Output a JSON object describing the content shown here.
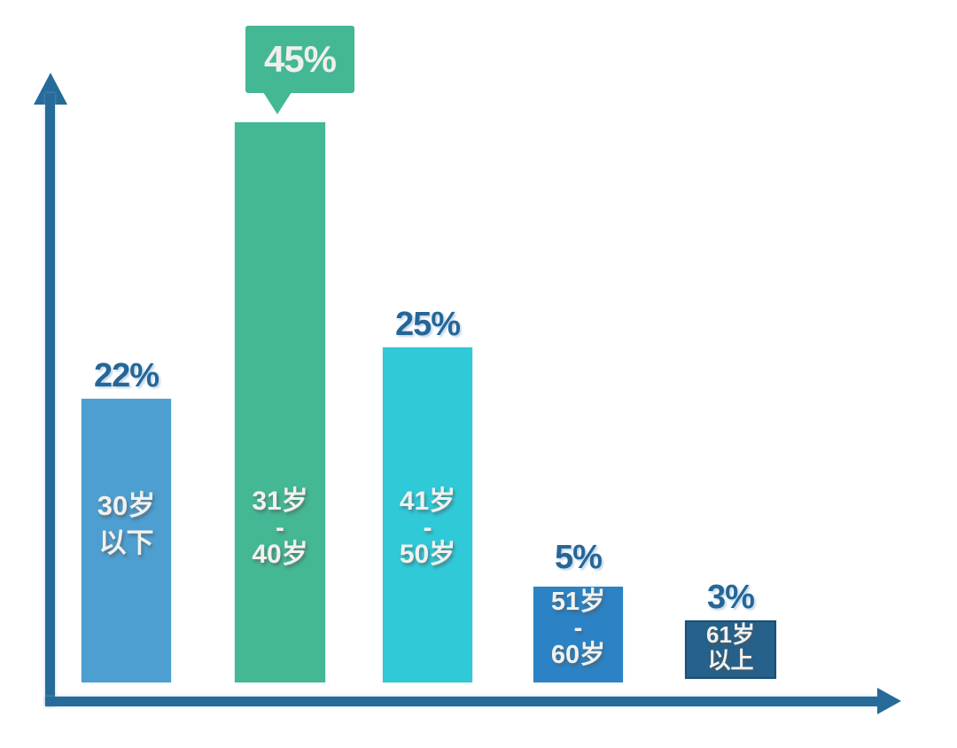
{
  "chart_data": {
    "type": "bar",
    "title": "",
    "xlabel": "",
    "ylabel": "",
    "grid": false,
    "legend": "none",
    "categories": [
      "30岁以下",
      "31岁-40岁",
      "41岁-50岁",
      "51岁-60岁",
      "61岁以上"
    ],
    "values": [
      22,
      45,
      25,
      5,
      3
    ],
    "unit": "%",
    "value_labels": [
      "22%",
      "45%",
      "25%",
      "5%",
      "3%"
    ],
    "bar_text_lines": [
      [
        "30岁",
        "以下"
      ],
      [
        "31岁",
        "-",
        "40岁"
      ],
      [
        "41岁",
        "-",
        "50岁"
      ],
      [
        "51岁",
        "-",
        "60岁"
      ],
      [
        "61岁",
        "以上"
      ]
    ],
    "colors": [
      "#4d9fd1",
      "#44b795",
      "#2fc9d8",
      "#2b83c5",
      "#25618a"
    ],
    "highlighted_category": "31岁-40岁",
    "callout": {
      "value": "45%",
      "color": "#44b795",
      "text_color": "#f0efec"
    },
    "axis_color": "#266b99",
    "value_label_color": "#266697"
  }
}
